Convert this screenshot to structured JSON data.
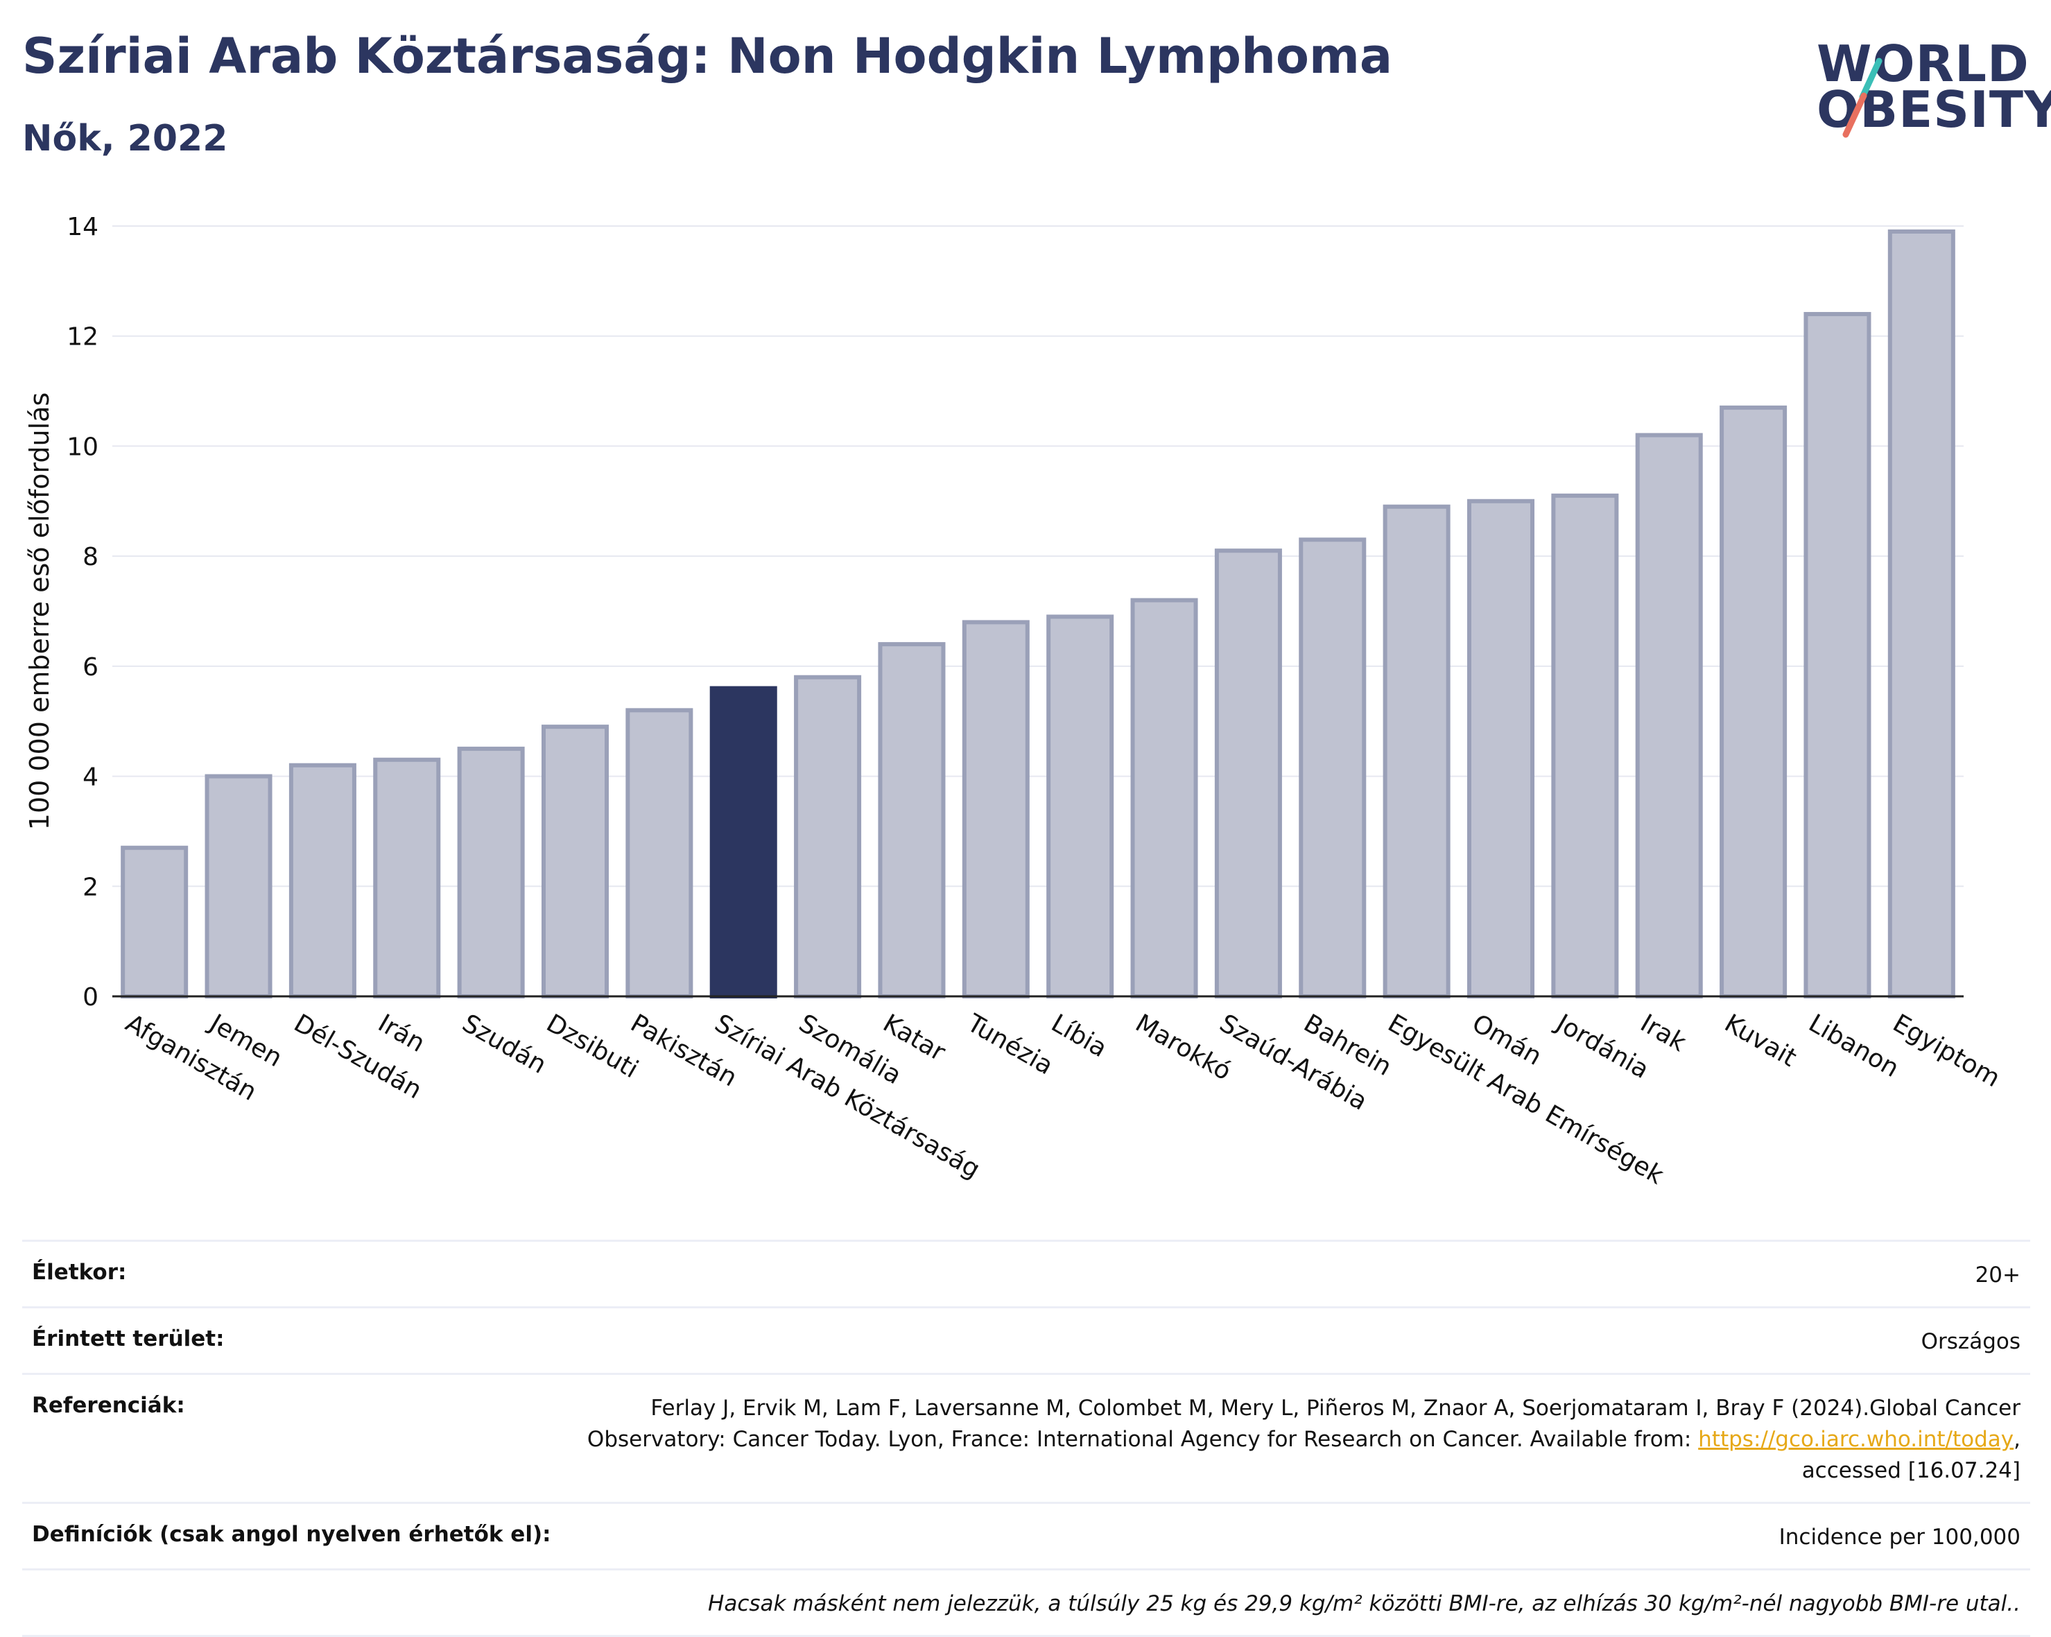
{
  "header": {
    "title": "Szíriai Arab Köztársaság: Non Hodgkin Lymphoma",
    "subtitle": "Nők, 2022"
  },
  "logo": {
    "line1": "WORLD",
    "line2": "OBESITY",
    "icon": "world-obesity-slash-logo",
    "colors": {
      "text": "#2c3660",
      "slash_top": "#3bbfb7",
      "slash_bottom": "#e8705f"
    }
  },
  "colors": {
    "accent": "#2c3660",
    "bar_fill": "#bfc2d1",
    "bar_stroke": "#9aa0b8",
    "grid": "#e6e8f0",
    "link": "#e6a817"
  },
  "chart_data": {
    "type": "bar",
    "title": "",
    "xlabel": "",
    "ylabel": "100 000 emberre eső előfordulás",
    "ylim": [
      0,
      14
    ],
    "yticks": [
      0,
      2,
      4,
      6,
      8,
      10,
      12,
      14
    ],
    "grid": true,
    "highlight": "Szíriai Arab Köztársaság",
    "categories": [
      "Afganisztán",
      "Jemen",
      "Dél-Szudán",
      "Irán",
      "Szudán",
      "Dzsibuti",
      "Pakisztán",
      "Szíriai Arab Köztársaság",
      "Szomália",
      "Katar",
      "Tunézia",
      "Líbia",
      "Marokkó",
      "Szaúd-Arábia",
      "Bahrein",
      "Egyesült Arab Emírségek",
      "Omán",
      "Jordánia",
      "Irak",
      "Kuvait",
      "Libanon",
      "Egyiptom"
    ],
    "values": [
      2.7,
      4.0,
      4.2,
      4.3,
      4.5,
      4.9,
      5.2,
      5.6,
      5.8,
      6.4,
      6.8,
      6.9,
      7.2,
      8.1,
      8.3,
      8.9,
      9.0,
      9.1,
      10.2,
      10.7,
      12.4,
      13.9
    ]
  },
  "meta": {
    "age_label": "Életkor:",
    "age_value": "20+",
    "area_label": "Érintett terület:",
    "area_value": "Országos",
    "refs_label": "Referenciák:",
    "refs_line1": "Ferlay J, Ervik M, Lam F, Laversanne M, Colombet M, Mery L, Piñeros M, Znaor A, Soerjomataram I, Bray F (2024).Global Cancer",
    "refs_line2_pre": "Observatory: Cancer Today. Lyon, France: International Agency for Research on Cancer. Available from: ",
    "refs_link": "https://gco.iarc.who.int/today",
    "refs_line2_post": ",",
    "refs_line3": "accessed [16.07.24]",
    "defs_label": "Definíciók (csak angol nyelven érhetők el):",
    "defs_value": "Incidence per 100,000",
    "note": "Hacsak másként nem jelezzük, a túlsúly 25 kg és 29,9 kg/m² közötti BMI-re, az elhízás 30 kg/m²-nél nagyobb BMI-re utal.."
  }
}
